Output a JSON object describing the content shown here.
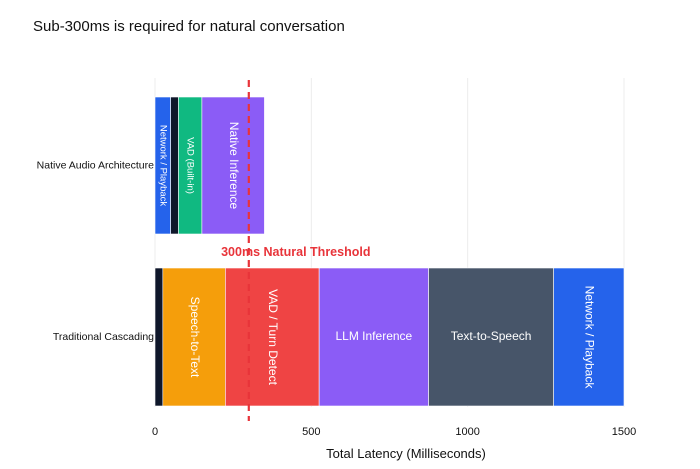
{
  "chart_data": {
    "type": "bar",
    "orientation": "horizontal",
    "stacked": true,
    "title": "Sub-300ms is required for natural conversation",
    "xlabel": "Total Latency (Milliseconds)",
    "ylabel": "",
    "xlim": [
      0,
      1500
    ],
    "xticks": [
      0,
      500,
      1000,
      1500
    ],
    "grid": true,
    "legend": "none",
    "threshold": {
      "value": 300,
      "label": "300ms Natural Threshold",
      "color": "#e8343a"
    },
    "categories": [
      "Native Audio Architecture",
      "Traditional Cascading"
    ],
    "stacks": [
      {
        "category": "Native Audio Architecture",
        "segments": [
          {
            "name": "Network / Playback",
            "value": 50,
            "color": "#2563eb"
          },
          {
            "name": "",
            "value": 25,
            "color": "#0f172a"
          },
          {
            "name": "VAD (Built-in)",
            "value": 75,
            "color": "#10b981"
          },
          {
            "name": "Native Inference",
            "value": 200,
            "color": "#8b5cf6"
          }
        ]
      },
      {
        "category": "Traditional Cascading",
        "segments": [
          {
            "name": "",
            "value": 25,
            "color": "#0f172a"
          },
          {
            "name": "Speech-to-Text",
            "value": 200,
            "color": "#f59e0b"
          },
          {
            "name": "VAD / Turn Detect",
            "value": 300,
            "color": "#ef4444"
          },
          {
            "name": "LLM Inference",
            "value": 350,
            "color": "#8b5cf6"
          },
          {
            "name": "Text-to-Speech",
            "value": 400,
            "color": "#475569"
          },
          {
            "name": "Network / Playback",
            "value": 225,
            "color": "#2563eb"
          }
        ]
      }
    ]
  }
}
